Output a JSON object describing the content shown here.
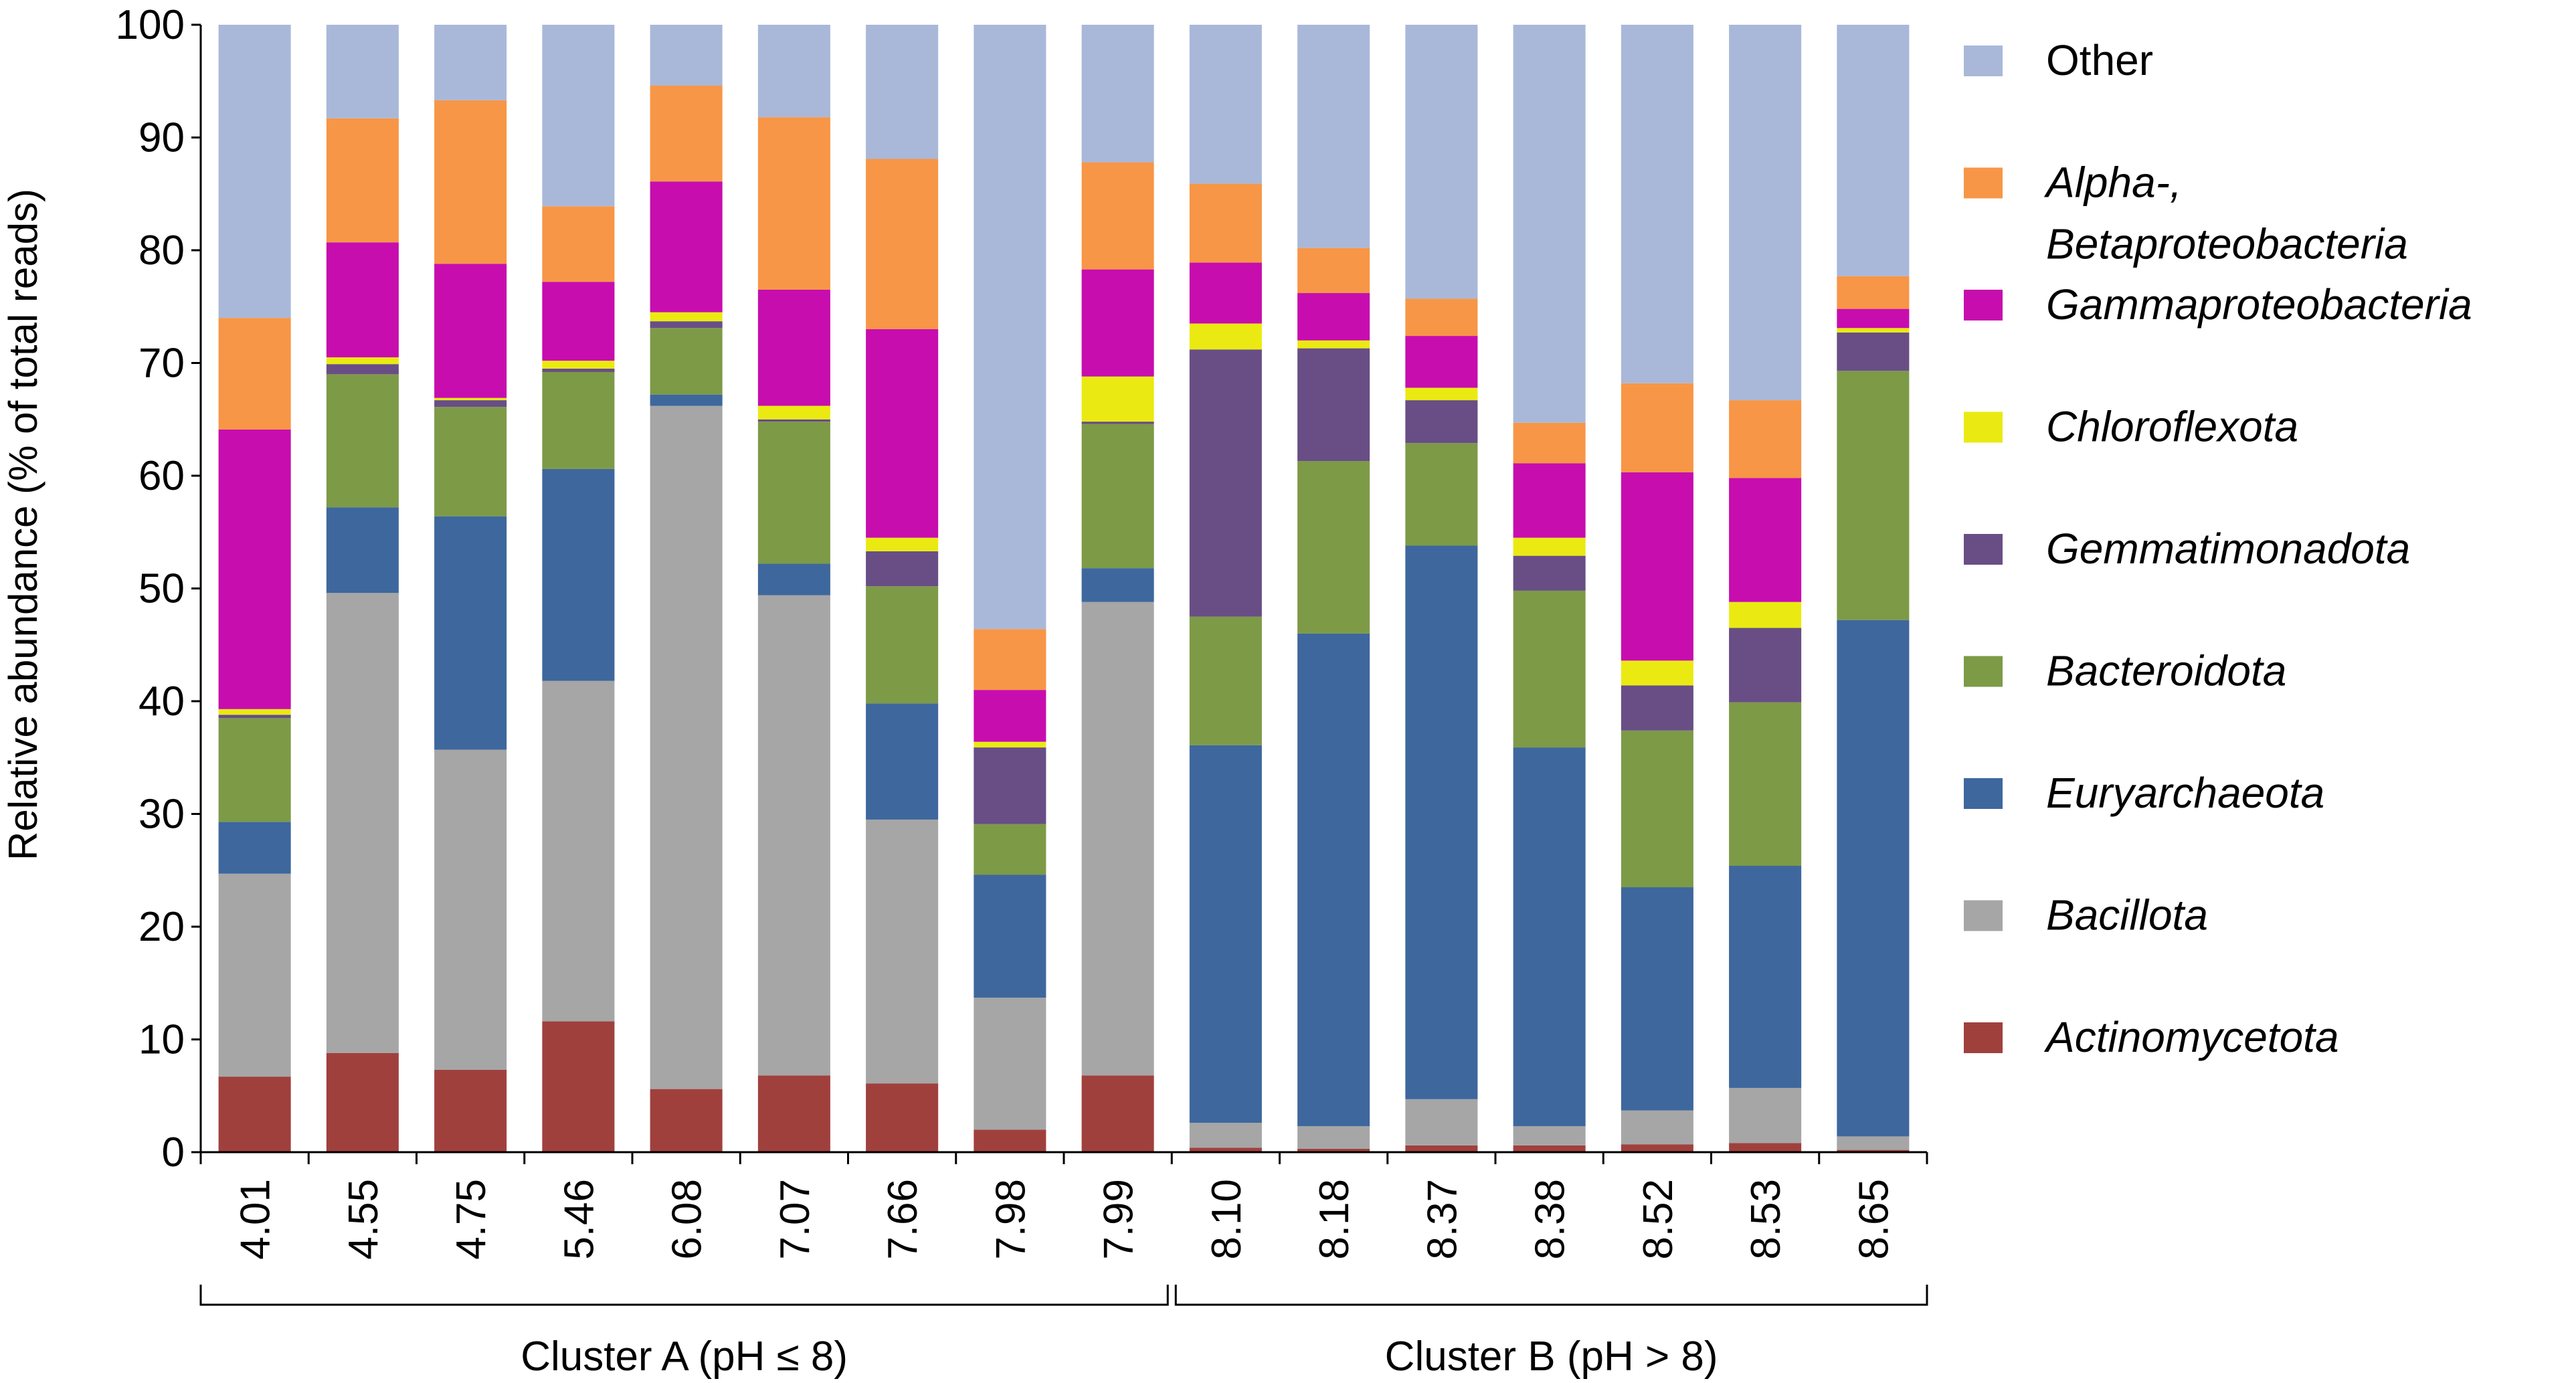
{
  "chart_data": {
    "type": "bar",
    "stacked": true,
    "title": "",
    "ylabel": "Relative abundance (% of total reads)",
    "xlabel": "",
    "ylim": [
      0,
      100
    ],
    "yticks": [
      "0",
      "10",
      "20",
      "30",
      "40",
      "50",
      "60",
      "70",
      "80",
      "90",
      "100"
    ],
    "categories": [
      "4.01",
      "4.55",
      "4.75",
      "5.46",
      "6.08",
      "7.07",
      "7.66",
      "7.98",
      "7.99",
      "8.10",
      "8.18",
      "8.37",
      "8.38",
      "8.52",
      "8.53",
      "8.65"
    ],
    "groups": [
      {
        "label": "Cluster A (pH ≤ 8)",
        "start": 0,
        "end": 8
      },
      {
        "label": "Cluster B (pH > 8)",
        "start": 9,
        "end": 15
      }
    ],
    "legend_position": "right",
    "series": [
      {
        "name": "Actinomycetota",
        "italic": true,
        "color": "#A0403D",
        "values": [
          6.7,
          8.8,
          7.3,
          11.6,
          5.6,
          6.8,
          6.1,
          2.0,
          6.8,
          0.4,
          0.3,
          0.6,
          0.6,
          0.7,
          0.8,
          0.2
        ]
      },
      {
        "name": "Bacillota",
        "italic": true,
        "color": "#A6A6A6",
        "values": [
          18.0,
          40.8,
          28.4,
          30.2,
          60.6,
          42.6,
          23.4,
          11.7,
          42.0,
          2.2,
          2.0,
          4.1,
          1.7,
          3.0,
          4.9,
          1.2
        ]
      },
      {
        "name": "Euryarchaeota",
        "italic": true,
        "color": "#3E679D",
        "values": [
          4.6,
          7.6,
          20.7,
          18.8,
          1.0,
          2.8,
          10.3,
          10.9,
          3.0,
          33.5,
          43.7,
          49.1,
          33.6,
          19.8,
          19.7,
          45.8
        ]
      },
      {
        "name": "Bacteroidota",
        "italic": true,
        "color": "#7D9A47",
        "values": [
          9.2,
          11.8,
          9.7,
          8.6,
          5.9,
          12.6,
          10.4,
          4.5,
          12.8,
          11.4,
          15.3,
          9.1,
          13.9,
          13.9,
          14.5,
          22.1
        ]
      },
      {
        "name": "Gemmatimonadota",
        "italic": true,
        "color": "#684E85",
        "values": [
          0.3,
          0.9,
          0.6,
          0.3,
          0.6,
          0.2,
          3.1,
          6.8,
          0.2,
          23.7,
          10.0,
          3.8,
          3.1,
          4.0,
          6.6,
          3.4
        ]
      },
      {
        "name": "Chloroflexota",
        "italic": true,
        "color": "#EAEA12",
        "values": [
          0.5,
          0.6,
          0.2,
          0.7,
          0.8,
          1.2,
          1.2,
          0.5,
          4.0,
          2.3,
          0.7,
          1.1,
          1.6,
          2.2,
          2.3,
          0.4
        ]
      },
      {
        "name": "Gammaproteobacteria",
        "italic": true,
        "color": "#C70DAE",
        "values": [
          24.8,
          10.2,
          11.9,
          7.0,
          11.6,
          10.3,
          18.5,
          4.6,
          9.5,
          5.4,
          4.2,
          4.6,
          6.6,
          16.7,
          11.0,
          1.7
        ]
      },
      {
        "name": "Alpha-, Betaproteobacteria",
        "italic": true,
        "color": "#F79646",
        "values": [
          9.9,
          11.0,
          14.5,
          6.7,
          8.5,
          15.3,
          15.1,
          5.4,
          9.5,
          7.0,
          4.0,
          3.3,
          3.6,
          7.9,
          6.9,
          2.9
        ]
      },
      {
        "name": "Other",
        "italic": false,
        "color": "#A9B8D9",
        "values": [
          26.0,
          8.3,
          6.7,
          16.1,
          5.4,
          8.2,
          11.9,
          53.6,
          12.2,
          14.1,
          19.8,
          24.3,
          35.3,
          31.8,
          33.3,
          22.3
        ]
      }
    ],
    "legend": [
      {
        "lines": [
          "Other"
        ],
        "series": "Other"
      },
      {
        "lines": [
          "Alpha-,",
          "Betaproteobacteria"
        ],
        "series": "Alpha-, Betaproteobacteria"
      },
      {
        "lines": [
          "Gammaproteobacteria"
        ],
        "series": "Gammaproteobacteria"
      },
      {
        "lines": [
          "Chloroflexota"
        ],
        "series": "Chloroflexota"
      },
      {
        "lines": [
          "Gemmatimonadota"
        ],
        "series": "Gemmatimonadota"
      },
      {
        "lines": [
          "Bacteroidota"
        ],
        "series": "Bacteroidota"
      },
      {
        "lines": [
          "Euryarchaeota"
        ],
        "series": "Euryarchaeota"
      },
      {
        "lines": [
          "Bacillota"
        ],
        "series": "Bacillota"
      },
      {
        "lines": [
          "Actinomycetota"
        ],
        "series": "Actinomycetota"
      }
    ]
  }
}
